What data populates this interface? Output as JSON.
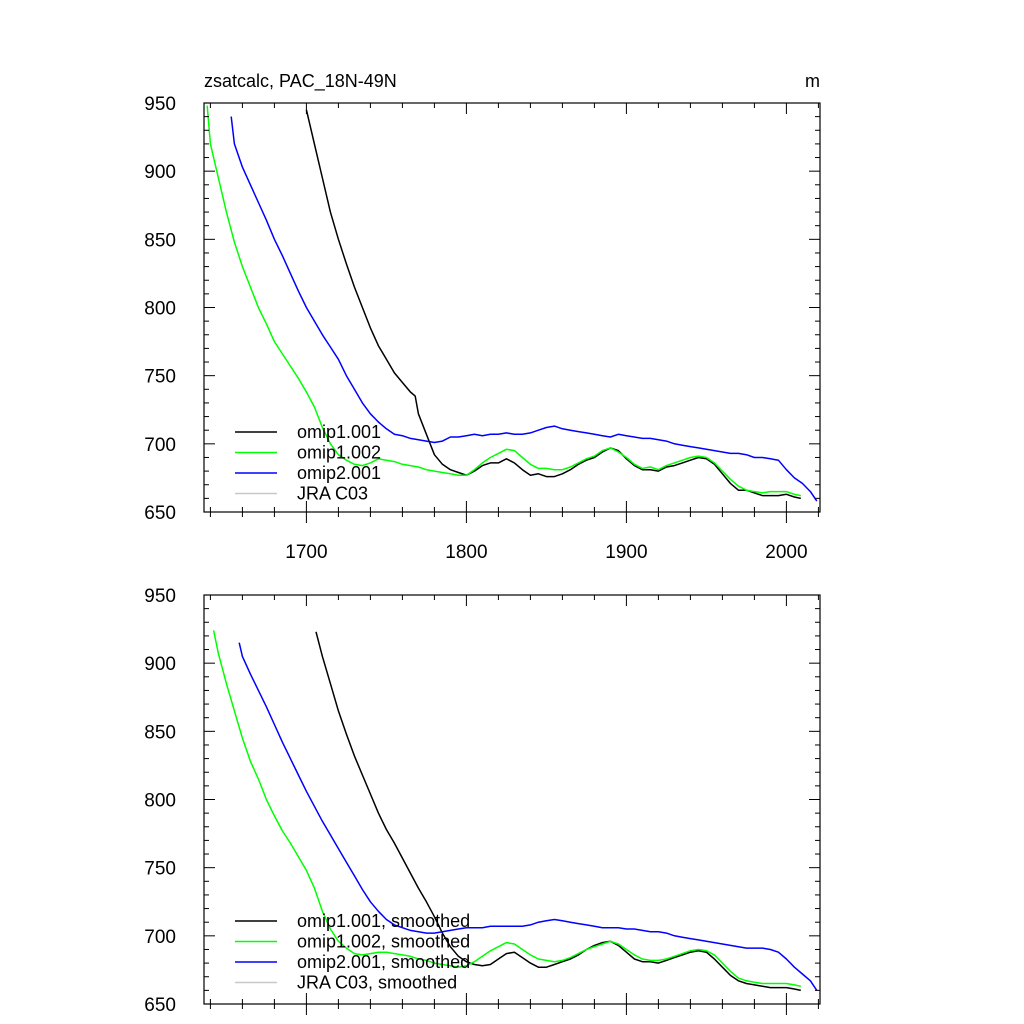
{
  "chart_data": [
    {
      "type": "line",
      "title": "zsatcalc, PAC_18N-49N",
      "units": "m",
      "xlabel": "",
      "ylabel": "",
      "xlim": [
        1636,
        2021
      ],
      "ylim": [
        650,
        950
      ],
      "yticks": [
        650,
        700,
        750,
        800,
        850,
        900,
        950
      ],
      "xticks": [
        1700,
        1800,
        1900,
        2000
      ],
      "x_tick_labels_shown": true,
      "grid": false,
      "legend_position": "lower-left",
      "series": [
        {
          "name": "omip1.001",
          "color": "#000000",
          "x": [
            1700,
            1705,
            1710,
            1715,
            1720,
            1725,
            1730,
            1735,
            1740,
            1745,
            1750,
            1755,
            1760,
            1765,
            1768,
            1770,
            1775,
            1780,
            1785,
            1790,
            1795,
            1800,
            1805,
            1810,
            1815,
            1820,
            1825,
            1830,
            1835,
            1840,
            1845,
            1850,
            1855,
            1860,
            1865,
            1870,
            1875,
            1880,
            1885,
            1890,
            1895,
            1900,
            1905,
            1910,
            1915,
            1920,
            1925,
            1930,
            1935,
            1940,
            1945,
            1950,
            1955,
            1960,
            1965,
            1970,
            1975,
            1980,
            1985,
            1990,
            1995,
            2000,
            2005,
            2009
          ],
          "y": [
            945,
            920,
            895,
            870,
            850,
            832,
            815,
            800,
            785,
            772,
            762,
            752,
            745,
            738,
            735,
            722,
            707,
            692,
            685,
            681,
            679,
            677,
            680,
            684,
            686,
            686,
            689,
            686,
            681,
            677,
            678,
            676,
            676,
            678,
            681,
            685,
            688,
            690,
            694,
            697,
            695,
            689,
            684,
            681,
            681,
            680,
            683,
            684,
            686,
            688,
            690,
            689,
            685,
            678,
            671,
            666,
            666,
            664,
            662,
            662,
            662,
            663,
            661,
            660
          ]
        },
        {
          "name": "omip1.002",
          "color": "#00ff00",
          "x": [
            1638,
            1640,
            1645,
            1650,
            1655,
            1660,
            1665,
            1670,
            1675,
            1680,
            1685,
            1690,
            1695,
            1700,
            1705,
            1710,
            1715,
            1720,
            1725,
            1730,
            1735,
            1740,
            1745,
            1750,
            1755,
            1760,
            1765,
            1770,
            1775,
            1780,
            1785,
            1790,
            1795,
            1800,
            1805,
            1810,
            1815,
            1820,
            1825,
            1830,
            1835,
            1840,
            1845,
            1850,
            1855,
            1860,
            1865,
            1870,
            1875,
            1880,
            1885,
            1890,
            1895,
            1900,
            1905,
            1910,
            1915,
            1920,
            1925,
            1930,
            1935,
            1940,
            1945,
            1950,
            1955,
            1960,
            1965,
            1970,
            1975,
            1980,
            1985,
            1990,
            1995,
            2000,
            2005,
            2009
          ],
          "y": [
            948,
            920,
            895,
            870,
            848,
            830,
            815,
            800,
            788,
            775,
            766,
            757,
            748,
            738,
            727,
            712,
            700,
            692,
            688,
            685,
            684,
            686,
            689,
            688,
            687,
            685,
            684,
            683,
            681,
            680,
            679,
            678,
            677,
            677,
            681,
            686,
            690,
            693,
            696,
            695,
            690,
            685,
            682,
            682,
            681,
            681,
            683,
            686,
            689,
            691,
            695,
            697,
            694,
            690,
            685,
            682,
            683,
            681,
            684,
            686,
            688,
            690,
            691,
            690,
            686,
            680,
            674,
            669,
            666,
            665,
            664,
            665,
            665,
            665,
            663,
            662
          ]
        },
        {
          "name": "omip2.001",
          "color": "#0000ff",
          "x": [
            1653,
            1655,
            1660,
            1665,
            1670,
            1675,
            1680,
            1685,
            1690,
            1695,
            1700,
            1705,
            1710,
            1715,
            1720,
            1725,
            1730,
            1735,
            1740,
            1745,
            1750,
            1755,
            1760,
            1765,
            1770,
            1775,
            1780,
            1785,
            1790,
            1795,
            1800,
            1805,
            1810,
            1815,
            1820,
            1825,
            1830,
            1835,
            1840,
            1845,
            1850,
            1855,
            1860,
            1865,
            1870,
            1875,
            1880,
            1885,
            1890,
            1895,
            1900,
            1905,
            1910,
            1915,
            1920,
            1925,
            1930,
            1935,
            1940,
            1945,
            1950,
            1955,
            1960,
            1965,
            1970,
            1975,
            1980,
            1985,
            1990,
            1995,
            2000,
            2005,
            2010,
            2015,
            2019
          ],
          "y": [
            940,
            920,
            903,
            890,
            877,
            864,
            850,
            838,
            825,
            812,
            800,
            790,
            780,
            771,
            762,
            750,
            740,
            730,
            722,
            716,
            711,
            707,
            706,
            704,
            703,
            702,
            701,
            702,
            705,
            705,
            706,
            707,
            706,
            707,
            707,
            708,
            707,
            707,
            708,
            710,
            712,
            713,
            711,
            710,
            709,
            708,
            707,
            706,
            705,
            707,
            706,
            705,
            704,
            704,
            703,
            702,
            700,
            699,
            698,
            697,
            696,
            695,
            694,
            693,
            693,
            692,
            690,
            690,
            689,
            688,
            681,
            675,
            671,
            665,
            658
          ]
        },
        {
          "name": "JRA C03",
          "color": "#c8c8c8",
          "x": [],
          "y": []
        }
      ]
    },
    {
      "type": "line",
      "title": "",
      "units": "",
      "xlabel": "",
      "ylabel": "",
      "xlim": [
        1636,
        2021
      ],
      "ylim": [
        650,
        950
      ],
      "yticks": [
        650,
        700,
        750,
        800,
        850,
        900,
        950
      ],
      "xticks": [
        1700,
        1800,
        1900,
        2000
      ],
      "x_tick_labels_shown": false,
      "grid": false,
      "legend_position": "lower-left",
      "series": [
        {
          "name": "omip1.001, smoothed",
          "color": "#000000",
          "x": [
            1706,
            1710,
            1715,
            1720,
            1725,
            1730,
            1735,
            1740,
            1745,
            1750,
            1755,
            1760,
            1765,
            1770,
            1775,
            1780,
            1785,
            1790,
            1795,
            1800,
            1805,
            1810,
            1815,
            1820,
            1825,
            1830,
            1835,
            1840,
            1845,
            1850,
            1855,
            1860,
            1865,
            1870,
            1875,
            1880,
            1885,
            1890,
            1895,
            1900,
            1905,
            1910,
            1915,
            1920,
            1925,
            1930,
            1935,
            1940,
            1945,
            1950,
            1955,
            1960,
            1965,
            1970,
            1975,
            1980,
            1985,
            1990,
            1995,
            2000,
            2005,
            2009
          ],
          "y": [
            923,
            905,
            885,
            865,
            848,
            832,
            818,
            804,
            790,
            778,
            768,
            757,
            746,
            735,
            725,
            714,
            702,
            692,
            685,
            681,
            679,
            678,
            679,
            683,
            687,
            688,
            684,
            680,
            677,
            677,
            679,
            681,
            683,
            686,
            690,
            693,
            695,
            696,
            693,
            688,
            683,
            681,
            681,
            680,
            682,
            684,
            686,
            688,
            689,
            688,
            683,
            677,
            671,
            667,
            665,
            664,
            663,
            662,
            662,
            662,
            661,
            660
          ]
        },
        {
          "name": "omip1.002, smoothed",
          "color": "#00ff00",
          "x": [
            1642,
            1645,
            1650,
            1655,
            1660,
            1665,
            1670,
            1675,
            1680,
            1685,
            1690,
            1695,
            1700,
            1705,
            1710,
            1715,
            1720,
            1725,
            1730,
            1735,
            1740,
            1745,
            1750,
            1755,
            1760,
            1765,
            1770,
            1775,
            1780,
            1785,
            1790,
            1795,
            1800,
            1805,
            1810,
            1815,
            1820,
            1825,
            1830,
            1835,
            1840,
            1845,
            1850,
            1855,
            1860,
            1865,
            1870,
            1875,
            1880,
            1885,
            1890,
            1895,
            1900,
            1905,
            1910,
            1915,
            1920,
            1925,
            1930,
            1935,
            1940,
            1945,
            1950,
            1955,
            1960,
            1965,
            1970,
            1975,
            1980,
            1985,
            1990,
            1995,
            2000,
            2005,
            2009
          ],
          "y": [
            924,
            907,
            885,
            865,
            845,
            828,
            815,
            800,
            788,
            777,
            768,
            758,
            748,
            735,
            718,
            705,
            696,
            691,
            687,
            686,
            687,
            688,
            688,
            687,
            686,
            685,
            683,
            682,
            680,
            679,
            678,
            677,
            678,
            681,
            685,
            689,
            692,
            695,
            694,
            690,
            686,
            683,
            682,
            681,
            682,
            684,
            687,
            690,
            692,
            694,
            696,
            694,
            690,
            686,
            683,
            682,
            682,
            683,
            685,
            687,
            689,
            690,
            689,
            686,
            680,
            674,
            669,
            667,
            666,
            665,
            665,
            665,
            665,
            664,
            663
          ]
        },
        {
          "name": "omip2.001, smoothed",
          "color": "#0000ff",
          "x": [
            1658,
            1660,
            1665,
            1670,
            1675,
            1680,
            1685,
            1690,
            1695,
            1700,
            1705,
            1710,
            1715,
            1720,
            1725,
            1730,
            1735,
            1740,
            1745,
            1750,
            1755,
            1760,
            1765,
            1770,
            1775,
            1780,
            1785,
            1790,
            1795,
            1800,
            1805,
            1810,
            1815,
            1820,
            1825,
            1830,
            1835,
            1840,
            1845,
            1850,
            1855,
            1860,
            1865,
            1870,
            1875,
            1880,
            1885,
            1890,
            1895,
            1900,
            1905,
            1910,
            1915,
            1920,
            1925,
            1930,
            1935,
            1940,
            1945,
            1950,
            1955,
            1960,
            1965,
            1970,
            1975,
            1980,
            1985,
            1990,
            1995,
            2000,
            2005,
            2010,
            2015,
            2019
          ],
          "y": [
            915,
            905,
            892,
            880,
            868,
            855,
            842,
            830,
            818,
            806,
            795,
            784,
            774,
            764,
            754,
            744,
            734,
            725,
            718,
            712,
            708,
            706,
            704,
            703,
            702,
            702,
            703,
            704,
            705,
            706,
            706,
            706,
            707,
            707,
            707,
            707,
            707,
            708,
            710,
            711,
            712,
            711,
            710,
            709,
            708,
            707,
            706,
            706,
            706,
            705,
            705,
            704,
            703,
            703,
            702,
            700,
            699,
            698,
            697,
            696,
            695,
            694,
            693,
            692,
            691,
            691,
            691,
            690,
            688,
            683,
            677,
            672,
            667,
            660
          ]
        },
        {
          "name": "JRA C03, smoothed",
          "color": "#c8c8c8",
          "x": [],
          "y": []
        }
      ]
    }
  ]
}
